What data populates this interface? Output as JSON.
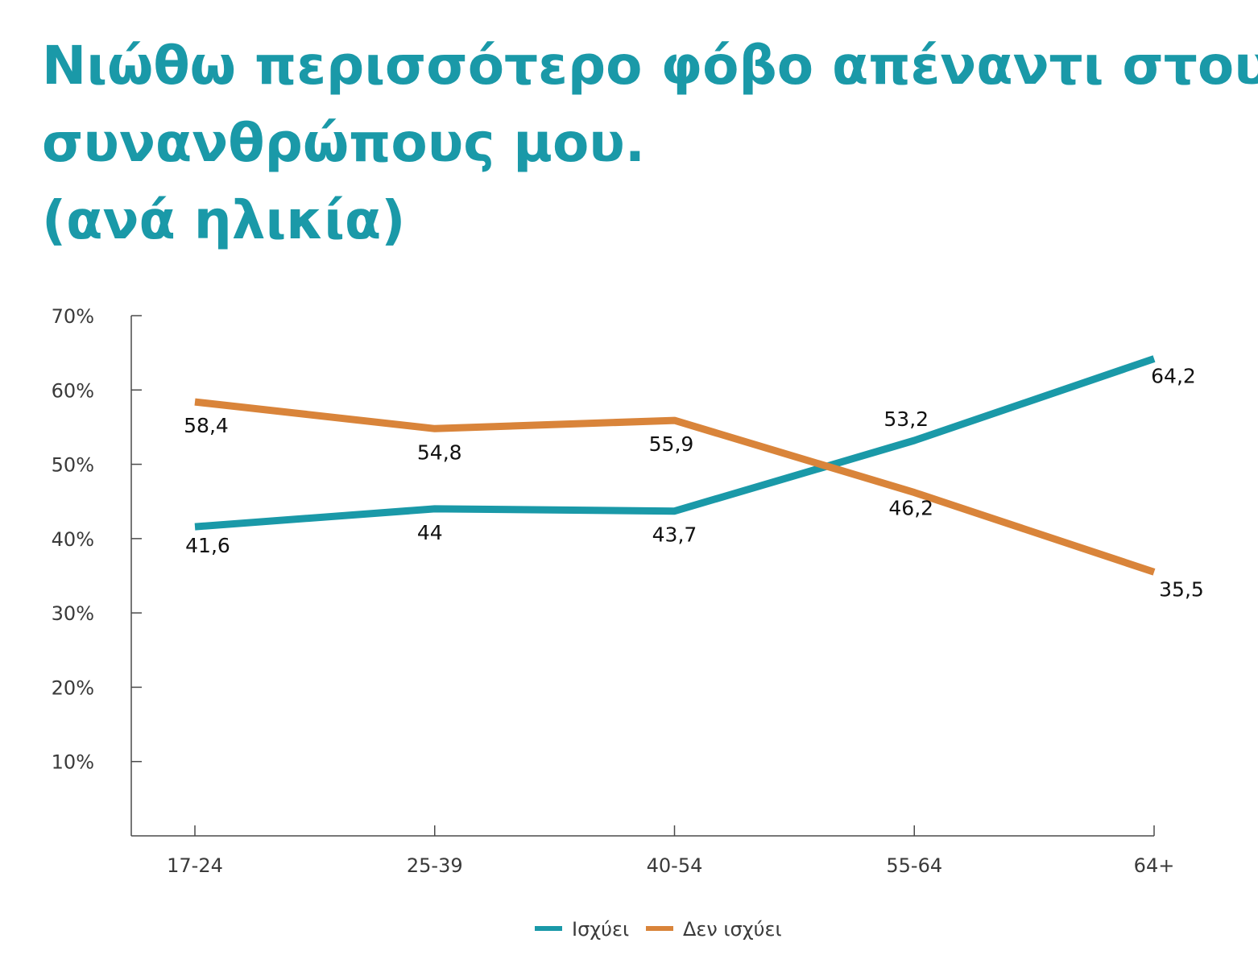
{
  "chart_data": {
    "type": "line",
    "title_lines": [
      "Νιώθω περισσότερο φόβο απέναντι στους",
      "συνανθρώπους μου.",
      "(ανά ηλικία)"
    ],
    "categories": [
      "17-24",
      "25-39",
      "40-54",
      "55-64",
      "64+"
    ],
    "y_ticks": [
      "10%",
      "20%",
      "30%",
      "40%",
      "50%",
      "60%",
      "70%"
    ],
    "ylim": [
      0,
      70
    ],
    "grid": false,
    "legend_position": "bottom-center",
    "series": [
      {
        "name": "Ισχύει",
        "color": "#1a99a8",
        "values": [
          41.6,
          44,
          43.7,
          53.2,
          64.2
        ],
        "labels": [
          "41,6",
          "44",
          "43,7",
          "53,2",
          "64,2"
        ]
      },
      {
        "name": "Δεν ισχύει",
        "color": "#d9843a",
        "values": [
          58.4,
          54.8,
          55.9,
          46.2,
          35.5
        ],
        "labels": [
          "58,4",
          "54,8",
          "55,9",
          "46,2",
          "35,5"
        ]
      }
    ]
  }
}
